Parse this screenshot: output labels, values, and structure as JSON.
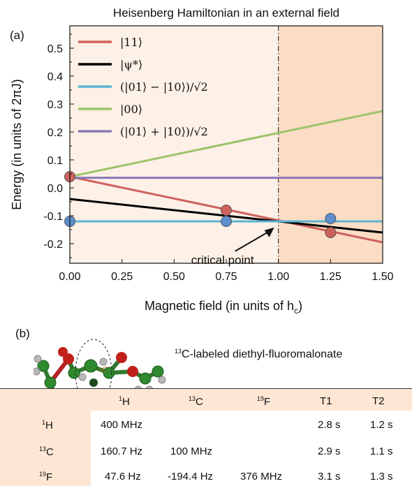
{
  "panel_a_label": "(a)",
  "panel_b_label": "(b)",
  "chart_data": {
    "type": "line",
    "title": "Heisenberg Hamiltonian in an external field",
    "xlabel": "Magnetic field (in units of h",
    "xlabel_sub": "c",
    "xlabel_end": ")",
    "ylabel": "Energy (in units of 2πJ)",
    "xlim": [
      0.0,
      1.5
    ],
    "ylim": [
      -0.27,
      0.58
    ],
    "x_ticks": [
      "0.00",
      "0.25",
      "0.50",
      "0.75",
      "1.00",
      "1.25",
      "1.50"
    ],
    "y_ticks": [
      "0.5",
      "0.4",
      "0.3",
      "0.2",
      "0.1",
      "0.0",
      "-0.1",
      "-0.2"
    ],
    "critical_field": 1.0,
    "region_colors": {
      "left": "#fdf0e6",
      "right": "#fbdcc4"
    },
    "annotation": {
      "text": "critical point",
      "x": 1.0,
      "y": -0.122
    },
    "series": [
      {
        "name": "|11⟩",
        "color": "#cf615c",
        "x": [
          0.0,
          1.5
        ],
        "y": [
          0.04,
          -0.195
        ]
      },
      {
        "name": "|ψ*⟩",
        "color": "#000000",
        "x": [
          0.0,
          1.5
        ],
        "y": [
          -0.04,
          -0.16
        ]
      },
      {
        "name": "(|01⟩ − |10⟩)/√2",
        "color": "#5bb5d2",
        "x": [
          0.0,
          1.5
        ],
        "y": [
          -0.12,
          -0.12
        ]
      },
      {
        "name": "|00⟩",
        "color": "#9cc46a",
        "x": [
          0.0,
          1.5
        ],
        "y": [
          0.04,
          0.275
        ]
      },
      {
        "name": "(|01⟩ + |10⟩)/√2",
        "color": "#8a78b6",
        "x": [
          0.0,
          1.5
        ],
        "y": [
          0.036,
          0.036
        ]
      }
    ],
    "points": [
      {
        "series": "|11⟩",
        "color": "#cf615c",
        "x": 0.0,
        "y": 0.04
      },
      {
        "series": "|11⟩",
        "color": "#cf615c",
        "x": 0.75,
        "y": -0.08
      },
      {
        "series": "|11⟩",
        "color": "#cf615c",
        "x": 1.25,
        "y": -0.16
      },
      {
        "series": "(|01⟩ − |10⟩)/√2",
        "color": "#5b8fcf",
        "x": 0.0,
        "y": -0.12
      },
      {
        "series": "(|01⟩ − |10⟩)/√2",
        "color": "#5b8fcf",
        "x": 0.75,
        "y": -0.12
      },
      {
        "series": "(|01⟩ − |10⟩)/√2",
        "color": "#5b8fcf",
        "x": 1.25,
        "y": -0.11
      }
    ]
  },
  "molecule": {
    "caption_sup": "13",
    "caption": "C-labeled diethyl-fluoromalonate",
    "atom_labels": [
      {
        "sup": "1",
        "text": "H"
      },
      {
        "sup": "13",
        "text": "C"
      },
      {
        "sup": "19",
        "text": "F"
      }
    ]
  },
  "table": {
    "columns": [
      {
        "sup": "1",
        "text": "H"
      },
      {
        "sup": "13",
        "text": "C"
      },
      {
        "sup": "19",
        "text": "F"
      },
      {
        "sup": "",
        "text": "T1"
      },
      {
        "sup": "",
        "text": "T2"
      }
    ],
    "rows": [
      {
        "sup": "1",
        "label": "H",
        "cells": [
          "400 MHz",
          "",
          "",
          "2.8 s",
          "1.2 s"
        ]
      },
      {
        "sup": "13",
        "label": "C",
        "cells": [
          "160.7 Hz",
          "100 MHz",
          "",
          "2.9 s",
          "1.1 s"
        ]
      },
      {
        "sup": "19",
        "label": "F",
        "cells": [
          "47.6 Hz",
          "-194.4 Hz",
          "376 MHz",
          "3.1 s",
          "1.3 s"
        ]
      }
    ]
  }
}
